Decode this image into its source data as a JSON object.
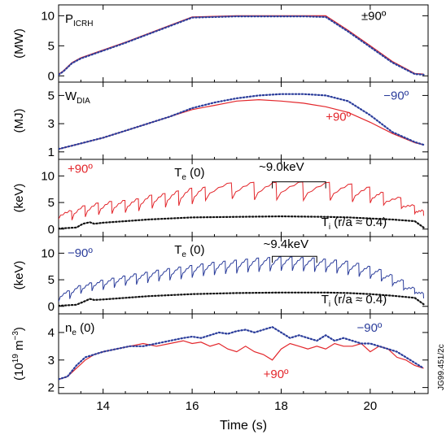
{
  "figure_code": "JG99.451/2c",
  "colors": {
    "plus90": "#e3262b",
    "minus90": "#2b3d9b",
    "ti": "#111111",
    "axis": "#000000"
  },
  "chart_data": [
    {
      "type": "line",
      "ylabel": "(MW)",
      "ylim": [
        -0.5,
        11
      ],
      "yticks": [
        0,
        5,
        10
      ],
      "panel_label": "P",
      "panel_label_sub": "ICRH",
      "annotations": [
        {
          "text": "±90º",
          "x": 19.8,
          "y": 9.3
        }
      ],
      "series": [
        {
          "key": "plus90",
          "style": "solid",
          "x": [
            13.0,
            13.1,
            13.2,
            13.3,
            13.5,
            14.0,
            14.5,
            15.0,
            15.5,
            16.0,
            16.5,
            17.0,
            17.5,
            18.0,
            18.5,
            19.0,
            19.5,
            20.0,
            20.5,
            21.0,
            21.2
          ],
          "y": [
            0.3,
            0.8,
            1.5,
            2.2,
            3.0,
            4.3,
            5.6,
            7.0,
            8.4,
            9.8,
            9.9,
            10.0,
            10.0,
            10.0,
            10.0,
            10.0,
            7.6,
            5.0,
            2.4,
            0.4,
            0.3
          ]
        },
        {
          "key": "minus90",
          "style": "dotted",
          "x": [
            13.0,
            13.1,
            13.2,
            13.3,
            13.5,
            14.0,
            14.5,
            15.0,
            15.5,
            16.0,
            16.5,
            17.0,
            17.5,
            18.0,
            18.5,
            19.0,
            19.5,
            20.0,
            20.5,
            21.0,
            21.2
          ],
          "y": [
            0.2,
            0.7,
            1.4,
            2.1,
            2.9,
            4.2,
            5.5,
            6.9,
            8.3,
            9.7,
            9.8,
            9.9,
            9.9,
            9.9,
            9.9,
            9.8,
            7.4,
            4.8,
            2.2,
            0.3,
            0.2
          ]
        }
      ]
    },
    {
      "type": "line",
      "ylabel": "(MJ)",
      "ylim": [
        0.7,
        5.6
      ],
      "yticks": [
        1,
        3,
        5
      ],
      "panel_label": "W",
      "panel_label_sub": "DIA",
      "annotations": [
        {
          "text": "−90º",
          "x": 20.3,
          "y": 4.7,
          "key": "minus90"
        },
        {
          "text": "+90º",
          "x": 19.0,
          "y": 3.2,
          "key": "plus90"
        }
      ],
      "series": [
        {
          "key": "plus90",
          "style": "solid",
          "x": [
            13.0,
            13.5,
            14.0,
            14.5,
            15.0,
            15.5,
            16.0,
            16.5,
            17.0,
            17.5,
            18.0,
            18.5,
            19.0,
            19.5,
            20.0,
            20.5,
            21.0,
            21.2
          ],
          "y": [
            1.2,
            1.6,
            2.0,
            2.5,
            3.0,
            3.5,
            4.0,
            4.3,
            4.6,
            4.7,
            4.6,
            4.45,
            4.2,
            3.8,
            3.1,
            2.3,
            1.65,
            1.5
          ]
        },
        {
          "key": "minus90",
          "style": "dotted",
          "x": [
            13.0,
            13.5,
            14.0,
            14.5,
            15.0,
            15.5,
            16.0,
            16.5,
            17.0,
            17.5,
            18.0,
            18.5,
            19.0,
            19.5,
            20.0,
            20.5,
            21.0,
            21.2
          ],
          "y": [
            1.2,
            1.6,
            2.0,
            2.5,
            3.0,
            3.5,
            4.1,
            4.5,
            4.8,
            5.0,
            5.1,
            5.1,
            5.0,
            4.6,
            3.6,
            2.4,
            1.7,
            1.5
          ]
        }
      ]
    },
    {
      "type": "line",
      "ylabel": "(keV)",
      "ylim": [
        -0.8,
        12.2
      ],
      "yticks": [
        0,
        5,
        10
      ],
      "annotations": [
        {
          "text": "+90º",
          "x": 13.2,
          "y": 10.6,
          "key": "plus90"
        },
        {
          "text": "T",
          "sub": "e",
          "suffix": " (0)",
          "x": 15.6,
          "y": 9.9
        },
        {
          "text": "~9.0keV",
          "x": 17.5,
          "y": 11.0
        },
        {
          "text": "T",
          "sub": "i",
          "suffix": " (r/a ≈ 0.4)",
          "x": 18.9,
          "y": 0.6
        }
      ],
      "sawtooth": {
        "key": "plus90",
        "crashes": [
          13.0,
          13.3,
          13.6,
          13.9,
          14.2,
          14.5,
          14.8,
          15.1,
          15.4,
          15.7,
          16.0,
          16.3,
          16.9,
          17.4,
          17.9,
          18.5,
          19.1,
          19.6,
          20.0,
          20.3,
          20.7,
          21.0,
          21.2
        ],
        "peaks": [
          2.5,
          3.5,
          4.5,
          5.0,
          5.3,
          5.5,
          5.8,
          6.5,
          6.8,
          7.3,
          7.8,
          8.0,
          8.8,
          8.9,
          8.9,
          9.0,
          8.9,
          8.6,
          8.0,
          7.0,
          6.0,
          4.5,
          3.5
        ],
        "troughs": [
          2.0,
          1.8,
          2.4,
          2.8,
          3.0,
          3.2,
          3.5,
          4.0,
          4.2,
          4.5,
          4.8,
          5.5,
          5.8,
          5.6,
          5.6,
          5.5,
          5.5,
          5.2,
          5.0,
          4.6,
          4.0,
          3.0,
          2.5
        ]
      },
      "series": [
        {
          "key": "ti",
          "style": "dotted",
          "x": [
            13.0,
            13.4,
            13.55,
            13.7,
            13.8,
            14.0,
            14.5,
            15.0,
            15.5,
            16.0,
            17.0,
            18.0,
            19.0,
            19.5,
            20.0,
            20.5,
            21.0,
            21.2
          ],
          "y": [
            0.1,
            0.3,
            1.0,
            1.3,
            1.0,
            1.2,
            1.5,
            1.8,
            2.0,
            2.2,
            2.3,
            2.4,
            2.3,
            2.2,
            2.0,
            1.8,
            1.5,
            0.3
          ]
        }
      ],
      "bracket": {
        "x1": 17.8,
        "x2": 19.0,
        "y": 8.9
      }
    },
    {
      "type": "line",
      "ylabel": "(keV)",
      "ylim": [
        -0.8,
        12.2
      ],
      "yticks": [
        0,
        5,
        10
      ],
      "annotations": [
        {
          "text": "−90º",
          "x": 13.2,
          "y": 9.3,
          "key": "minus90"
        },
        {
          "text": "T",
          "sub": "e",
          "suffix": " (0)",
          "x": 15.6,
          "y": 9.9
        },
        {
          "text": "~9.4keV",
          "x": 17.6,
          "y": 11.0
        },
        {
          "text": "T",
          "sub": "i",
          "suffix": " (r/a ≈ 0.4)",
          "x": 18.9,
          "y": 0.6
        }
      ],
      "sawtooth": {
        "key": "minus90",
        "crashes": [
          13.0,
          13.25,
          13.5,
          13.75,
          14.0,
          14.25,
          14.5,
          14.75,
          15.0,
          15.25,
          15.5,
          15.75,
          16.0,
          16.25,
          16.5,
          16.75,
          17.0,
          17.25,
          17.5,
          17.75,
          18.0,
          18.25,
          18.5,
          18.75,
          19.0,
          19.25,
          19.5,
          19.75,
          20.0,
          20.25,
          20.5,
          20.75,
          21.0,
          21.2
        ],
        "peaks": [
          1.5,
          3.0,
          4.0,
          4.5,
          5.0,
          5.4,
          5.8,
          6.2,
          6.5,
          6.9,
          7.2,
          7.5,
          7.8,
          8.1,
          8.4,
          8.6,
          8.8,
          9.0,
          9.2,
          9.3,
          9.4,
          9.4,
          9.3,
          9.2,
          9.0,
          8.8,
          8.6,
          8.2,
          7.6,
          7.0,
          6.0,
          5.0,
          3.5,
          2.5
        ],
        "troughs": [
          1.0,
          1.5,
          2.5,
          3.0,
          3.2,
          3.6,
          4.0,
          4.2,
          4.5,
          4.8,
          5.0,
          5.2,
          5.5,
          5.8,
          6.0,
          6.2,
          6.3,
          6.5,
          6.6,
          6.7,
          6.8,
          6.8,
          6.7,
          6.6,
          6.5,
          6.3,
          6.0,
          5.7,
          5.3,
          4.8,
          4.0,
          3.2,
          2.5,
          1.5
        ]
      },
      "series": [
        {
          "key": "ti",
          "style": "dotted",
          "x": [
            13.0,
            13.4,
            13.6,
            13.7,
            13.8,
            14.0,
            14.5,
            15.0,
            15.5,
            16.0,
            17.0,
            18.0,
            19.0,
            19.5,
            20.0,
            20.5,
            21.0,
            21.2
          ],
          "y": [
            0.1,
            0.3,
            1.0,
            1.4,
            1.2,
            1.3,
            1.6,
            1.9,
            2.1,
            2.3,
            2.5,
            2.6,
            2.6,
            2.5,
            2.3,
            2.0,
            1.6,
            0.4
          ]
        }
      ],
      "bracket": {
        "x1": 17.8,
        "x2": 18.8,
        "y": 9.4
      }
    },
    {
      "type": "line",
      "ylabel": "(10",
      "ylabel_sup": "19",
      "ylabel_suffix": " m",
      "ylabel_sup2": "−3",
      "ylabel_end": ")",
      "xlabel": "Time (s)",
      "xlim": [
        13.0,
        21.3
      ],
      "xticks": [
        14,
        16,
        18,
        20
      ],
      "ylim": [
        1.9,
        4.5
      ],
      "yticks": [
        2,
        3,
        4
      ],
      "panel_label": "n",
      "panel_label_sub": "e",
      "panel_label_suffix": " (0)",
      "annotations": [
        {
          "text": "−90º",
          "x": 19.7,
          "y": 4.02,
          "key": "minus90"
        },
        {
          "text": "+90º",
          "x": 17.6,
          "y": 2.35,
          "key": "plus90"
        }
      ],
      "series": [
        {
          "key": "plus90",
          "style": "solid",
          "x": [
            13.0,
            13.2,
            13.4,
            13.6,
            13.8,
            14.0,
            14.3,
            14.6,
            14.9,
            15.2,
            15.5,
            15.8,
            16.0,
            16.2,
            16.4,
            16.6,
            16.8,
            17.0,
            17.2,
            17.4,
            17.6,
            17.8,
            18.0,
            18.2,
            18.4,
            18.6,
            18.8,
            19.0,
            19.2,
            19.4,
            19.6,
            19.8,
            20.0,
            20.2,
            20.4,
            20.6,
            20.8,
            21.0,
            21.2
          ],
          "y": [
            2.3,
            2.4,
            2.7,
            3.0,
            3.2,
            3.3,
            3.4,
            3.5,
            3.6,
            3.5,
            3.6,
            3.7,
            3.6,
            3.65,
            3.5,
            3.6,
            3.4,
            3.3,
            3.5,
            3.3,
            3.2,
            3.0,
            3.4,
            3.6,
            3.5,
            3.4,
            3.5,
            3.4,
            3.6,
            3.5,
            3.5,
            3.6,
            3.3,
            3.5,
            3.4,
            3.1,
            3.0,
            2.8,
            2.7
          ]
        },
        {
          "key": "minus90",
          "style": "dotted",
          "x": [
            13.0,
            13.2,
            13.4,
            13.6,
            13.8,
            14.0,
            14.3,
            14.6,
            14.9,
            15.2,
            15.5,
            15.8,
            16.0,
            16.2,
            16.4,
            16.6,
            16.8,
            17.0,
            17.2,
            17.4,
            17.6,
            17.8,
            18.0,
            18.2,
            18.4,
            18.6,
            18.8,
            19.0,
            19.2,
            19.4,
            19.6,
            19.8,
            20.0,
            20.2,
            20.4,
            20.6,
            20.8,
            21.0,
            21.2
          ],
          "y": [
            2.3,
            2.4,
            2.8,
            3.1,
            3.2,
            3.3,
            3.4,
            3.5,
            3.5,
            3.6,
            3.7,
            3.8,
            3.85,
            3.8,
            3.9,
            4.0,
            3.95,
            4.05,
            4.1,
            4.0,
            4.1,
            4.2,
            4.0,
            3.8,
            3.9,
            3.8,
            3.7,
            3.9,
            3.7,
            3.8,
            3.7,
            3.6,
            3.6,
            3.5,
            3.4,
            3.3,
            3.1,
            2.9,
            2.7
          ]
        }
      ]
    }
  ]
}
